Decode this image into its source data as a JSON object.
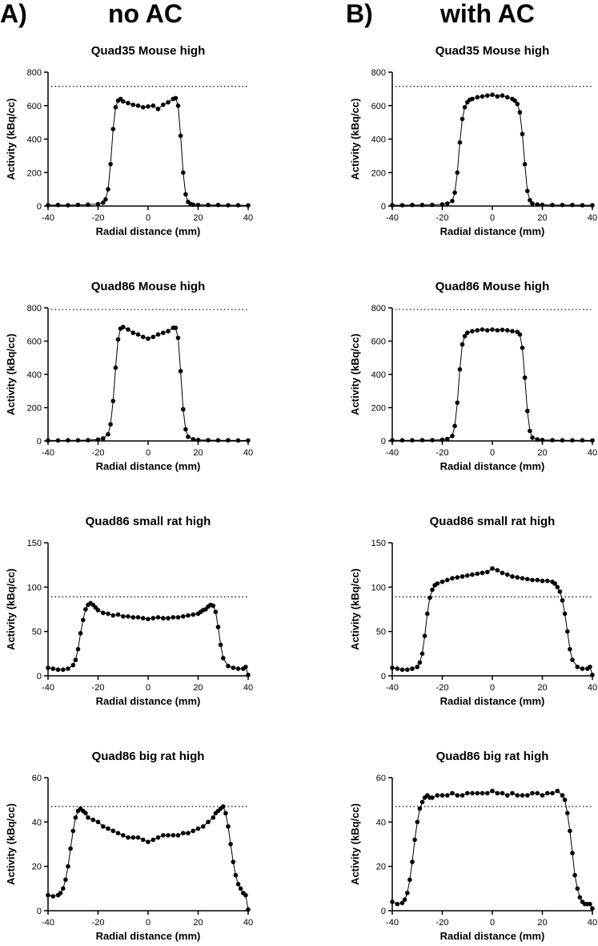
{
  "headers": {
    "left_letter": "A)",
    "left_title": "no AC",
    "right_letter": "B)",
    "right_title": "with AC"
  },
  "chart_data": [
    {
      "id": "a1",
      "type": "line",
      "title": "Quad35 Mouse high",
      "xlabel": "Radial distance (mm)",
      "ylabel": "Activity (kBq/cc)",
      "xlim": [
        -40,
        40
      ],
      "ylim": [
        0,
        800
      ],
      "xticks": [
        -40,
        -20,
        0,
        20,
        40
      ],
      "yticks": [
        0,
        200,
        400,
        600,
        800
      ],
      "reference_line": 715,
      "series": [
        {
          "x": [
            -40,
            -36,
            -32,
            -28,
            -24,
            -20,
            -18,
            -17,
            -16,
            -15,
            -14,
            -13,
            -12,
            -11,
            -10,
            -8,
            -6,
            -4,
            -2,
            0,
            2,
            4,
            6,
            8,
            10,
            11,
            12,
            13,
            14,
            15,
            16,
            17,
            18,
            20,
            24,
            28,
            32,
            36,
            40
          ],
          "y": [
            5,
            6,
            5,
            7,
            8,
            12,
            20,
            40,
            100,
            250,
            460,
            590,
            630,
            640,
            625,
            615,
            605,
            600,
            590,
            595,
            600,
            580,
            605,
            620,
            640,
            645,
            600,
            420,
            200,
            70,
            25,
            12,
            8,
            7,
            6,
            6,
            5,
            5,
            4
          ]
        }
      ]
    },
    {
      "id": "b1",
      "type": "line",
      "title": "Quad35 Mouse high",
      "xlabel": "Radial distance (mm)",
      "ylabel": "Activity (kBq/cc)",
      "xlim": [
        -40,
        40
      ],
      "ylim": [
        0,
        800
      ],
      "xticks": [
        -40,
        -20,
        0,
        20,
        40
      ],
      "yticks": [
        0,
        200,
        400,
        600,
        800
      ],
      "reference_line": 715,
      "series": [
        {
          "x": [
            -40,
            -36,
            -32,
            -28,
            -24,
            -20,
            -18,
            -16,
            -15,
            -14,
            -13,
            -12,
            -11,
            -10,
            -9,
            -8,
            -6,
            -4,
            -2,
            0,
            2,
            4,
            6,
            8,
            9,
            10,
            11,
            12,
            13,
            14,
            15,
            16,
            18,
            20,
            24,
            28,
            32,
            36,
            40
          ],
          "y": [
            5,
            5,
            6,
            6,
            7,
            10,
            15,
            30,
            80,
            200,
            380,
            520,
            590,
            620,
            635,
            640,
            650,
            655,
            660,
            665,
            655,
            660,
            650,
            640,
            630,
            610,
            560,
            430,
            250,
            90,
            35,
            15,
            9,
            7,
            6,
            6,
            6,
            5,
            5
          ]
        }
      ]
    },
    {
      "id": "a2",
      "type": "line",
      "title": "Quad86 Mouse high",
      "xlabel": "Radial distance (mm)",
      "ylabel": "Activity (kBq/cc)",
      "xlim": [
        -40,
        40
      ],
      "ylim": [
        0,
        800
      ],
      "xticks": [
        -40,
        -20,
        0,
        20,
        40
      ],
      "yticks": [
        0,
        200,
        400,
        600,
        800
      ],
      "reference_line": 790,
      "series": [
        {
          "x": [
            -40,
            -36,
            -32,
            -28,
            -24,
            -20,
            -18,
            -16,
            -15,
            -14,
            -13,
            -12,
            -11,
            -10,
            -8,
            -6,
            -4,
            -2,
            0,
            2,
            4,
            6,
            8,
            10,
            11,
            12,
            13,
            14,
            15,
            16,
            18,
            20,
            24,
            28,
            32,
            36,
            40
          ],
          "y": [
            3,
            3,
            4,
            4,
            5,
            8,
            15,
            40,
            100,
            240,
            440,
            610,
            675,
            685,
            670,
            650,
            640,
            625,
            615,
            625,
            640,
            650,
            660,
            680,
            680,
            620,
            420,
            190,
            70,
            25,
            10,
            6,
            5,
            4,
            4,
            3,
            3
          ]
        }
      ]
    },
    {
      "id": "b2",
      "type": "line",
      "title": "Quad86 Mouse high",
      "xlabel": "Radial distance (mm)",
      "ylabel": "Activity (kBq/cc)",
      "xlim": [
        -40,
        40
      ],
      "ylim": [
        0,
        800
      ],
      "xticks": [
        -40,
        -20,
        0,
        20,
        40
      ],
      "yticks": [
        0,
        200,
        400,
        600,
        800
      ],
      "reference_line": 790,
      "series": [
        {
          "x": [
            -40,
            -36,
            -32,
            -28,
            -24,
            -20,
            -18,
            -16,
            -15,
            -14,
            -13,
            -12,
            -11,
            -10,
            -8,
            -6,
            -4,
            -2,
            0,
            2,
            4,
            6,
            8,
            10,
            11,
            12,
            13,
            14,
            15,
            16,
            18,
            20,
            24,
            28,
            32,
            36,
            40
          ],
          "y": [
            4,
            4,
            4,
            5,
            5,
            7,
            12,
            30,
            90,
            230,
            430,
            580,
            630,
            650,
            660,
            665,
            670,
            665,
            670,
            665,
            668,
            665,
            660,
            655,
            640,
            560,
            380,
            180,
            60,
            20,
            9,
            6,
            5,
            4,
            4,
            4,
            3
          ]
        }
      ]
    },
    {
      "id": "a3",
      "type": "line",
      "title": "Quad86 small rat high",
      "xlabel": "Radial distance (mm)",
      "ylabel": "Activity (kBq/cc)",
      "xlim": [
        -40,
        40
      ],
      "ylim": [
        0,
        150
      ],
      "xticks": [
        -40,
        -20,
        0,
        20,
        40
      ],
      "yticks": [
        0,
        50,
        100,
        150
      ],
      "reference_line": 89,
      "series": [
        {
          "x": [
            -40,
            -38,
            -36,
            -34,
            -32,
            -30,
            -29,
            -28,
            -27,
            -26,
            -25,
            -24,
            -23,
            -22,
            -21,
            -20,
            -18,
            -16,
            -14,
            -12,
            -10,
            -8,
            -6,
            -4,
            -2,
            0,
            2,
            4,
            6,
            8,
            10,
            12,
            14,
            16,
            18,
            20,
            21,
            22,
            23,
            24,
            25,
            26,
            27,
            28,
            29,
            30,
            32,
            34,
            36,
            38,
            39,
            40
          ],
          "y": [
            9,
            8,
            7,
            7,
            8,
            12,
            18,
            30,
            48,
            63,
            75,
            80,
            82,
            80,
            77,
            74,
            71,
            70,
            68,
            69,
            67,
            67,
            66,
            66,
            65,
            64,
            65,
            66,
            65,
            65,
            66,
            66,
            67,
            68,
            69,
            70,
            72,
            74,
            75,
            78,
            80,
            79,
            72,
            55,
            35,
            20,
            11,
            9,
            8,
            8,
            10,
            1
          ]
        }
      ]
    },
    {
      "id": "b3",
      "type": "line",
      "title": "Quad86 small rat high",
      "xlabel": "Radial distance (mm)",
      "ylabel": "Activity (kBq/cc)",
      "xlim": [
        -40,
        40
      ],
      "ylim": [
        0,
        150
      ],
      "xticks": [
        -40,
        -20,
        0,
        20,
        40
      ],
      "yticks": [
        0,
        50,
        100,
        150
      ],
      "reference_line": 89,
      "series": [
        {
          "x": [
            -40,
            -38,
            -36,
            -34,
            -32,
            -30,
            -29,
            -28,
            -27,
            -26,
            -25,
            -24,
            -23,
            -22,
            -20,
            -18,
            -16,
            -14,
            -12,
            -10,
            -8,
            -6,
            -4,
            -2,
            0,
            2,
            4,
            6,
            8,
            10,
            12,
            14,
            16,
            18,
            20,
            22,
            24,
            25,
            26,
            27,
            28,
            29,
            30,
            31,
            32,
            34,
            36,
            38,
            39,
            40
          ],
          "y": [
            9,
            8,
            7,
            7,
            8,
            10,
            15,
            25,
            45,
            70,
            88,
            97,
            102,
            104,
            106,
            108,
            110,
            111,
            112,
            113,
            114,
            115,
            116,
            117,
            121,
            119,
            116,
            114,
            112,
            111,
            110,
            109,
            108,
            108,
            107,
            107,
            106,
            104,
            100,
            95,
            85,
            70,
            50,
            30,
            18,
            10,
            8,
            8,
            10,
            1
          ]
        }
      ]
    },
    {
      "id": "a4",
      "type": "line",
      "title": "Quad86 big rat high",
      "xlabel": "Radial distance (mm)",
      "ylabel": "Activity (kBq/cc)",
      "xlim": [
        -40,
        40
      ],
      "ylim": [
        0,
        60
      ],
      "xticks": [
        -40,
        -20,
        0,
        20,
        40
      ],
      "yticks": [
        0,
        20,
        40,
        60
      ],
      "reference_line": 47,
      "series": [
        {
          "x": [
            -40,
            -38,
            -36,
            -35,
            -34,
            -33,
            -32,
            -31,
            -30,
            -29,
            -28,
            -27,
            -26,
            -25,
            -24,
            -22,
            -20,
            -18,
            -16,
            -14,
            -12,
            -10,
            -8,
            -6,
            -4,
            -2,
            0,
            2,
            4,
            6,
            8,
            10,
            12,
            14,
            16,
            18,
            20,
            22,
            24,
            26,
            27,
            28,
            29,
            30,
            31,
            32,
            33,
            34,
            35,
            36,
            37,
            38,
            39,
            40
          ],
          "y": [
            7,
            6.5,
            7,
            8,
            10,
            14,
            20,
            28,
            36,
            42,
            45,
            46,
            45,
            44,
            42,
            41,
            40,
            38,
            37,
            36,
            35,
            34,
            33,
            33,
            33,
            32,
            31,
            32,
            33,
            34,
            34,
            34,
            34,
            35,
            35,
            36,
            37,
            38,
            40,
            42,
            44,
            45,
            46,
            47,
            44,
            38,
            30,
            22,
            16,
            12,
            10,
            8,
            7,
            0.5
          ]
        }
      ]
    },
    {
      "id": "b4",
      "type": "line",
      "title": "Quad86 big rat high",
      "xlabel": "Radial distance (mm)",
      "ylabel": "Activity (kBq/cc)",
      "xlim": [
        -40,
        40
      ],
      "ylim": [
        0,
        60
      ],
      "xticks": [
        -40,
        -20,
        0,
        20,
        40
      ],
      "yticks": [
        0,
        20,
        40,
        60
      ],
      "reference_line": 47,
      "series": [
        {
          "x": [
            -40,
            -38,
            -36,
            -35,
            -34,
            -33,
            -32,
            -31,
            -30,
            -29,
            -28,
            -27,
            -26,
            -25,
            -24,
            -22,
            -20,
            -18,
            -16,
            -14,
            -12,
            -10,
            -8,
            -6,
            -4,
            -2,
            0,
            2,
            4,
            6,
            8,
            10,
            12,
            14,
            16,
            18,
            20,
            22,
            24,
            26,
            28,
            29,
            30,
            31,
            32,
            33,
            34,
            35,
            36,
            37,
            38,
            39,
            40
          ],
          "y": [
            4,
            3,
            3.5,
            5,
            8,
            14,
            22,
            32,
            40,
            46,
            49,
            51,
            52,
            51,
            51,
            52,
            52,
            52,
            53,
            52,
            52,
            53,
            53,
            53,
            53,
            53,
            54,
            53,
            53,
            52,
            53,
            52,
            52,
            52,
            53,
            53,
            52,
            53,
            53,
            54,
            52,
            50,
            44,
            36,
            26,
            16,
            10,
            6,
            4,
            3,
            3,
            3,
            1
          ]
        }
      ]
    }
  ]
}
